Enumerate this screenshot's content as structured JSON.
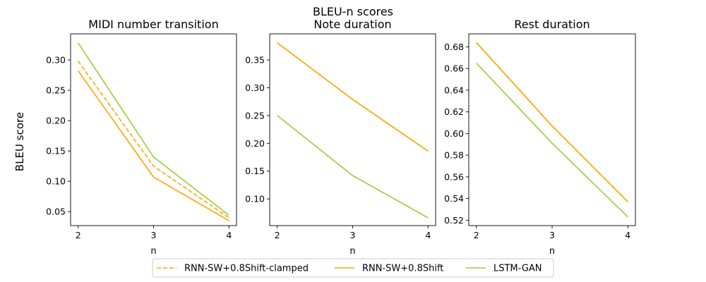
{
  "figure": {
    "suptitle": "BLEU-n scores",
    "ylabel": "BLEU score"
  },
  "colors": {
    "orange": "#ffa500",
    "green": "#9acd32"
  },
  "legend": {
    "placement": "bottom-center",
    "entries": [
      {
        "label": "RNN-SW+0.8Shift-clamped",
        "color": "#ffa500",
        "dash": true
      },
      {
        "label": "RNN-SW+0.8Shift",
        "color": "#ffa500",
        "dash": false
      },
      {
        "label": "LSTM-GAN",
        "color": "#9acd32",
        "dash": false
      }
    ]
  },
  "chart_data": [
    {
      "type": "line",
      "title": "MIDI number transition",
      "xlabel": "n",
      "ylabel": "BLEU score",
      "x": [
        2,
        3,
        4
      ],
      "xlim": [
        1.9,
        4.1
      ],
      "ylim": [
        0.027,
        0.343
      ],
      "yticks": [
        0.05,
        0.1,
        0.15,
        0.2,
        0.25,
        0.3
      ],
      "ytick_labels": [
        "0.05",
        "0.10",
        "0.15",
        "0.20",
        "0.25",
        "0.30"
      ],
      "series": [
        {
          "name": "RNN-SW+0.8Shift-clamped",
          "color": "#ffa500",
          "dash": true,
          "values": [
            0.298,
            0.125,
            0.04
          ]
        },
        {
          "name": "RNN-SW+0.8Shift",
          "color": "#ffa500",
          "dash": false,
          "values": [
            0.282,
            0.107,
            0.035
          ]
        },
        {
          "name": "LSTM-GAN",
          "color": "#9acd32",
          "dash": false,
          "values": [
            0.328,
            0.14,
            0.044
          ]
        }
      ]
    },
    {
      "type": "line",
      "title": "Note duration",
      "xlabel": "n",
      "ylabel": "",
      "x": [
        2,
        3,
        4
      ],
      "xlim": [
        1.9,
        4.1
      ],
      "ylim": [
        0.052,
        0.397
      ],
      "yticks": [
        0.1,
        0.15,
        0.2,
        0.25,
        0.3,
        0.35
      ],
      "ytick_labels": [
        "0.10",
        "0.15",
        "0.20",
        "0.25",
        "0.30",
        "0.35"
      ],
      "series": [
        {
          "name": "RNN-SW+0.8Shift-clamped",
          "color": "#ffa500",
          "dash": true,
          "values": [
            0.381,
            0.279,
            0.186
          ]
        },
        {
          "name": "RNN-SW+0.8Shift",
          "color": "#ffa500",
          "dash": false,
          "values": [
            0.381,
            0.279,
            0.186
          ]
        },
        {
          "name": "LSTM-GAN",
          "color": "#9acd32",
          "dash": false,
          "values": [
            0.25,
            0.142,
            0.066
          ]
        }
      ]
    },
    {
      "type": "line",
      "title": "Rest duration",
      "xlabel": "n",
      "ylabel": "",
      "x": [
        2,
        3,
        4
      ],
      "xlim": [
        1.9,
        4.1
      ],
      "ylim": [
        0.515,
        0.692
      ],
      "yticks": [
        0.52,
        0.54,
        0.56,
        0.58,
        0.6,
        0.62,
        0.64,
        0.66,
        0.68
      ],
      "ytick_labels": [
        "0.52",
        "0.54",
        "0.56",
        "0.58",
        "0.60",
        "0.62",
        "0.64",
        "0.66",
        "0.68"
      ],
      "series": [
        {
          "name": "RNN-SW+0.8Shift-clamped",
          "color": "#ffa500",
          "dash": true,
          "values": [
            0.684,
            0.607,
            0.537
          ]
        },
        {
          "name": "RNN-SW+0.8Shift",
          "color": "#ffa500",
          "dash": false,
          "values": [
            0.684,
            0.607,
            0.537
          ]
        },
        {
          "name": "LSTM-GAN",
          "color": "#9acd32",
          "dash": false,
          "values": [
            0.665,
            0.591,
            0.523
          ]
        }
      ]
    }
  ]
}
